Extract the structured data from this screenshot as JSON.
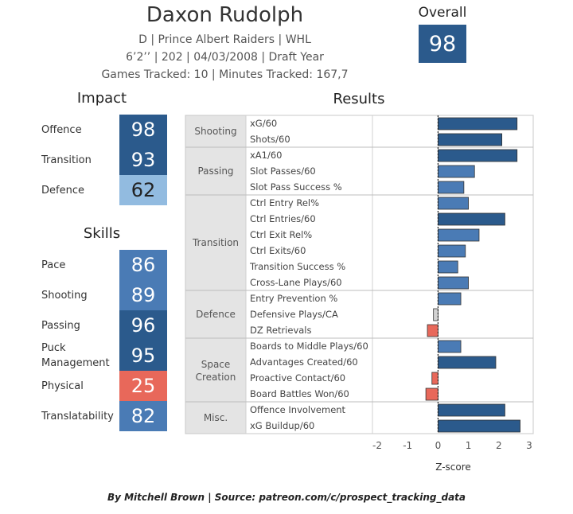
{
  "header": {
    "name": "Daxon Rudolph",
    "line1": "D | Prince Albert Raiders | WHL",
    "line2": "6’2’’ | 202 | 04/03/2008 |  Draft Year",
    "line3": "Games Tracked: 10 | Minutes Tracked: 167,7"
  },
  "overall": {
    "label": "Overall",
    "value": "98"
  },
  "impact": {
    "title": "Impact",
    "items": [
      {
        "label": "Offence",
        "value": "98",
        "color": "#2b5a8c"
      },
      {
        "label": "Transition",
        "value": "93",
        "color": "#2b5a8c"
      },
      {
        "label": "Defence",
        "value": "62",
        "color": "#92bbe0"
      }
    ]
  },
  "skills": {
    "title": "Skills",
    "items": [
      {
        "label": "Pace",
        "value": "86",
        "color": "#4a7bb5"
      },
      {
        "label": "Shooting",
        "value": "89",
        "color": "#4a7bb5"
      },
      {
        "label": "Passing",
        "value": "96",
        "color": "#2b5a8c"
      },
      {
        "label": "Puck Management",
        "value": "95",
        "color": "#2b5a8c"
      },
      {
        "label": "Physical",
        "value": "25",
        "color": "#e8685a"
      },
      {
        "label": "Translatability",
        "value": "82",
        "color": "#4a7bb5"
      }
    ]
  },
  "chart_data": {
    "type": "bar",
    "orientation": "horizontal",
    "title": "Results",
    "xlabel": "Z-score",
    "xlim": [
      -2,
      3
    ],
    "xticks": [
      -2,
      -1,
      0,
      1,
      2,
      3
    ],
    "groups": [
      {
        "name": "Shooting",
        "metrics": [
          {
            "label": "xG/60",
            "value": 2.6,
            "color": "#2b5a8c"
          },
          {
            "label": "Shots/60",
            "value": 2.1,
            "color": "#2b5a8c"
          }
        ]
      },
      {
        "name": "Passing",
        "metrics": [
          {
            "label": "xA1/60",
            "value": 2.6,
            "color": "#2b5a8c"
          },
          {
            "label": "Slot Passes/60",
            "value": 1.2,
            "color": "#4a7bb5"
          },
          {
            "label": "Slot Pass Success %",
            "value": 0.85,
            "color": "#4a7bb5"
          }
        ]
      },
      {
        "name": "Transition",
        "metrics": [
          {
            "label": "Ctrl Entry Rel%",
            "value": 1.0,
            "color": "#4a7bb5"
          },
          {
            "label": "Ctrl Entries/60",
            "value": 2.2,
            "color": "#2b5a8c"
          },
          {
            "label": "Ctrl Exit Rel%",
            "value": 1.35,
            "color": "#4a7bb5"
          },
          {
            "label": "Ctrl Exits/60",
            "value": 0.9,
            "color": "#4a7bb5"
          },
          {
            "label": "Transition Success %",
            "value": 0.65,
            "color": "#4a7bb5"
          },
          {
            "label": "Cross-Lane Plays/60",
            "value": 1.0,
            "color": "#4a7bb5"
          }
        ]
      },
      {
        "name": "Defence",
        "metrics": [
          {
            "label": "Entry Prevention %",
            "value": 0.75,
            "color": "#4a7bb5"
          },
          {
            "label": "Defensive Plays/CA",
            "value": -0.15,
            "color": "#d3d3d3"
          },
          {
            "label": "DZ Retrievals",
            "value": -0.35,
            "color": "#e8685a"
          }
        ]
      },
      {
        "name": "Space Creation",
        "metrics": [
          {
            "label": "Boards to Middle Plays/60",
            "value": 0.75,
            "color": "#4a7bb5"
          },
          {
            "label": "Advantages Created/60",
            "value": 1.9,
            "color": "#2b5a8c"
          },
          {
            "label": "Proactive Contact/60",
            "value": -0.2,
            "color": "#e8685a"
          },
          {
            "label": "Board Battles Won/60",
            "value": -0.4,
            "color": "#e8685a"
          }
        ]
      },
      {
        "name": "Misc.",
        "metrics": [
          {
            "label": "Offence Involvement",
            "value": 2.2,
            "color": "#2b5a8c"
          },
          {
            "label": "xG Buildup/60",
            "value": 2.7,
            "color": "#2b5a8c"
          }
        ]
      }
    ]
  },
  "credit": "By Mitchell Brown | Source: patreon.com/c/prospect_tracking_data"
}
